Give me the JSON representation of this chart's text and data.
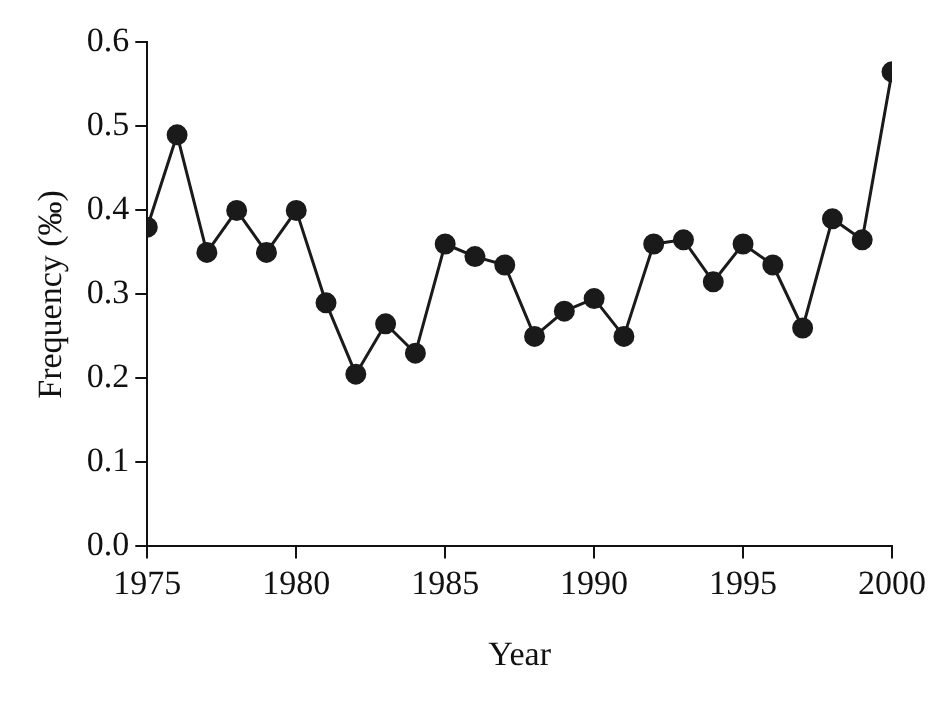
{
  "chart_data": {
    "type": "line",
    "xlabel": "Year",
    "ylabel": "Frequency (‰)",
    "x": [
      1975,
      1976,
      1977,
      1978,
      1979,
      1980,
      1981,
      1982,
      1983,
      1984,
      1985,
      1986,
      1987,
      1988,
      1989,
      1990,
      1991,
      1992,
      1993,
      1994,
      1995,
      1996,
      1997,
      1998,
      1999,
      2000
    ],
    "series": [
      {
        "color": "#1a1a1a",
        "values": [
          0.38,
          0.49,
          0.35,
          0.4,
          0.35,
          0.4,
          0.29,
          0.205,
          0.265,
          0.23,
          0.36,
          0.345,
          0.335,
          0.25,
          0.28,
          0.295,
          0.25,
          0.36,
          0.365,
          0.315,
          0.36,
          0.335,
          0.26,
          0.39,
          0.365,
          0.565
        ]
      }
    ],
    "xlim": [
      1975,
      2000
    ],
    "xticks": [
      1975,
      1980,
      1985,
      1990,
      1995,
      2000
    ],
    "ylim": [
      0,
      0.6
    ],
    "yticks": [
      {
        "value": 0,
        "label": "0.0"
      },
      {
        "value": 0.1,
        "label": "0.1"
      },
      {
        "value": 0.2,
        "label": "0.2"
      },
      {
        "value": 0.3,
        "label": "0.3"
      },
      {
        "value": 0.4,
        "label": "0.4"
      },
      {
        "value": 0.5,
        "label": "0.5"
      },
      {
        "value": 0.6,
        "label": "0.6"
      }
    ],
    "grid": false,
    "legend": false,
    "marker": "circle",
    "line_style": "solid"
  }
}
